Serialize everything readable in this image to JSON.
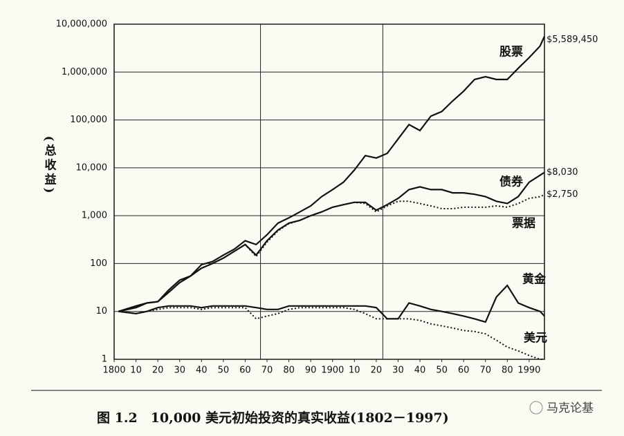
{
  "chart_data": {
    "type": "line",
    "ylabel": "(总收益)",
    "log_y": true,
    "caption": "图 1.2　10,000 美元初始投资的真实收益(1802－1997)",
    "watermark": "马克论基",
    "xlim": [
      1800,
      1997
    ],
    "ylim": [
      1,
      10000000
    ],
    "xgrid": [
      1867,
      1923
    ],
    "xticks": [
      1800,
      {
        "value": 1810,
        "label": "10"
      },
      {
        "value": 1820,
        "label": "20"
      },
      {
        "value": 1830,
        "label": "30"
      },
      {
        "value": 1840,
        "label": "40"
      },
      {
        "value": 1850,
        "label": "50"
      },
      {
        "value": 1860,
        "label": "60"
      },
      {
        "value": 1870,
        "label": "70"
      },
      {
        "value": 1880,
        "label": "80"
      },
      {
        "value": 1890,
        "label": "90"
      },
      1900,
      {
        "value": 1910,
        "label": "10"
      },
      {
        "value": 1920,
        "label": "20"
      },
      {
        "value": 1930,
        "label": "30"
      },
      {
        "value": 1940,
        "label": "40"
      },
      {
        "value": 1950,
        "label": "50"
      },
      {
        "value": 1960,
        "label": "60"
      },
      {
        "value": 1970,
        "label": "70"
      },
      {
        "value": 1980,
        "label": "80"
      },
      1990
    ],
    "yticks": [
      1,
      10,
      100,
      {
        "value": 1000,
        "label": "1,000"
      },
      {
        "value": 10000,
        "label": "10,000"
      },
      {
        "value": 100000,
        "label": "100,000"
      },
      {
        "value": 1000000,
        "label": "1,000,000"
      },
      {
        "value": 10000000,
        "label": "10,000,000"
      }
    ],
    "x": [
      1802,
      1810,
      1815,
      1820,
      1825,
      1830,
      1835,
      1840,
      1845,
      1850,
      1855,
      1860,
      1865,
      1870,
      1875,
      1880,
      1885,
      1890,
      1895,
      1900,
      1905,
      1910,
      1915,
      1920,
      1925,
      1930,
      1935,
      1940,
      1945,
      1950,
      1955,
      1960,
      1965,
      1970,
      1975,
      1980,
      1985,
      1990,
      1995,
      1997
    ],
    "series": [
      {
        "name": "股票",
        "color": "#111111",
        "dashed": false,
        "end_label": "$5,589,450",
        "values": [
          10,
          13,
          15,
          16,
          28,
          45,
          55,
          95,
          110,
          150,
          200,
          300,
          250,
          400,
          700,
          900,
          1200,
          1600,
          2500,
          3500,
          5000,
          9000,
          18000,
          16000,
          20000,
          40000,
          80000,
          60000,
          120000,
          150000,
          250000,
          400000,
          700000,
          800000,
          700000,
          700000,
          1200000,
          2000000,
          3500000,
          5589450
        ]
      },
      {
        "name": "债券",
        "color": "#111111",
        "dashed": false,
        "end_label": "$8,030",
        "values": [
          10,
          12,
          15,
          16,
          25,
          40,
          55,
          80,
          100,
          130,
          180,
          250,
          150,
          300,
          500,
          700,
          800,
          1000,
          1200,
          1500,
          1700,
          1900,
          1900,
          1300,
          1700,
          2300,
          3500,
          4000,
          3500,
          3500,
          3000,
          3000,
          2800,
          2500,
          2000,
          1800,
          2500,
          5000,
          7000,
          8030
        ]
      },
      {
        "name": "票据",
        "color": "#111111",
        "dashed": true,
        "end_label": "$2,750",
        "values": [
          10,
          12,
          15,
          16,
          25,
          40,
          55,
          80,
          100,
          130,
          180,
          250,
          140,
          280,
          480,
          680,
          800,
          1000,
          1200,
          1500,
          1700,
          1900,
          1800,
          1200,
          1600,
          2000,
          2000,
          1800,
          1600,
          1400,
          1400,
          1500,
          1500,
          1500,
          1600,
          1500,
          1800,
          2300,
          2500,
          2750
        ]
      },
      {
        "name": "黄金",
        "color": "#111111",
        "dashed": false,
        "values": [
          10,
          9,
          10,
          12,
          13,
          13,
          13,
          12,
          13,
          13,
          13,
          13,
          12,
          11,
          11,
          13,
          13,
          13,
          13,
          13,
          13,
          13,
          13,
          12,
          7,
          7,
          15,
          13,
          11,
          10,
          9,
          8,
          7,
          6,
          20,
          35,
          15,
          12,
          10,
          8
        ]
      },
      {
        "name": "美元",
        "color": "#111111",
        "dashed": true,
        "values": [
          10,
          9,
          10,
          11,
          12,
          12,
          12,
          11,
          12,
          12,
          12,
          12,
          7,
          8,
          9,
          11,
          12,
          12,
          12,
          12,
          12,
          11,
          9,
          7,
          7,
          7,
          7,
          6.5,
          5.5,
          5,
          4.5,
          4,
          3.8,
          3.4,
          2.5,
          1.8,
          1.5,
          1.2,
          1,
          1
        ]
      }
    ]
  }
}
